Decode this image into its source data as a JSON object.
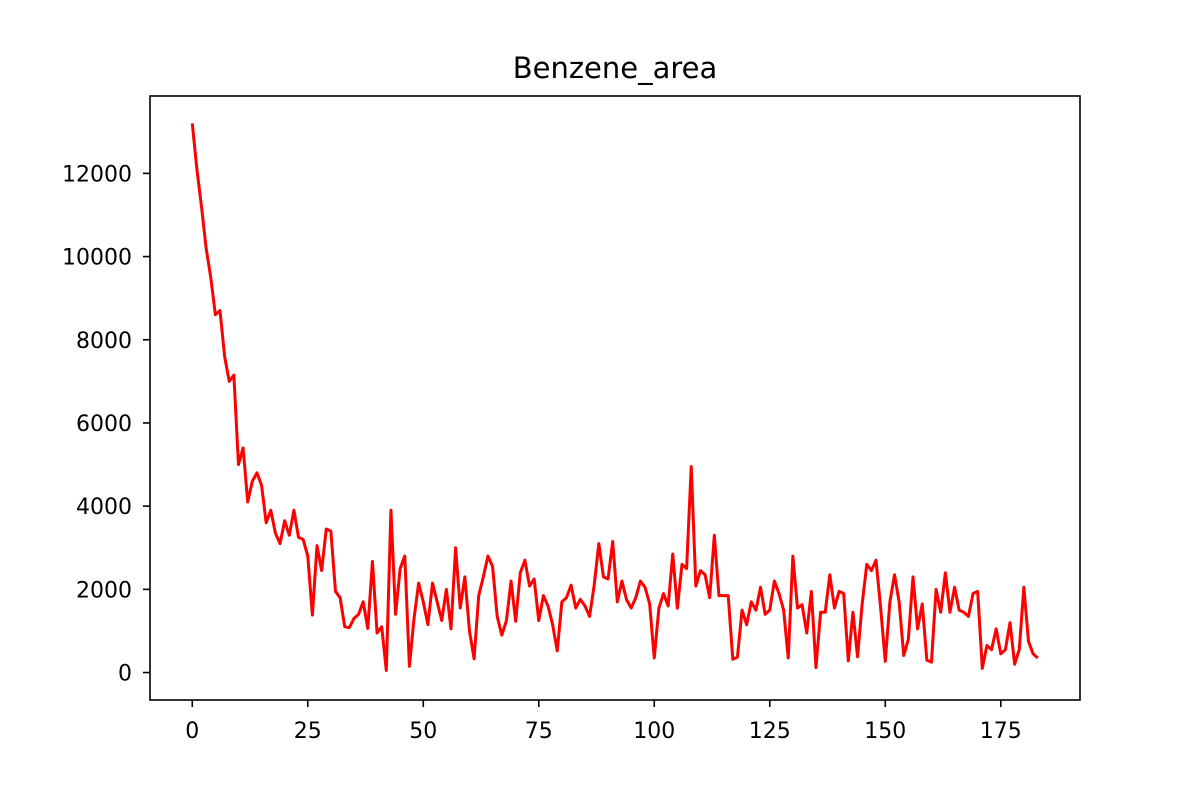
{
  "chart_data": {
    "type": "line",
    "title": "Benzene_area",
    "xlabel": "",
    "ylabel": "",
    "xlim": [
      -9.15,
      192.15
    ],
    "ylim": [
      -660,
      13860
    ],
    "x_ticks": [
      0,
      25,
      50,
      75,
      100,
      125,
      150,
      175
    ],
    "y_ticks": [
      0,
      2000,
      4000,
      6000,
      8000,
      10000,
      12000
    ],
    "grid": false,
    "legend": "none",
    "series": [
      {
        "color": "#ff0000",
        "x_start": 0,
        "x_step": 1,
        "values": [
          13200,
          12100,
          11200,
          10200,
          9500,
          8600,
          8700,
          7600,
          7000,
          7150,
          5000,
          5400,
          4100,
          4600,
          4800,
          4500,
          3600,
          3900,
          3350,
          3100,
          3650,
          3300,
          3900,
          3250,
          3200,
          2800,
          1380,
          3050,
          2450,
          3450,
          3400,
          1950,
          1800,
          1100,
          1080,
          1300,
          1400,
          1700,
          1060,
          2670,
          950,
          1100,
          50,
          3900,
          1400,
          2500,
          2800,
          150,
          1300,
          2150,
          1700,
          1150,
          2150,
          1700,
          1250,
          2000,
          1050,
          3000,
          1550,
          2300,
          1000,
          330,
          1850,
          2300,
          2800,
          2550,
          1350,
          900,
          1250,
          2200,
          1230,
          2400,
          2700,
          2080,
          2250,
          1250,
          1850,
          1600,
          1150,
          520,
          1700,
          1800,
          2100,
          1550,
          1760,
          1600,
          1350,
          2100,
          3100,
          2300,
          2250,
          3150,
          1700,
          2200,
          1750,
          1550,
          1800,
          2200,
          2050,
          1650,
          350,
          1550,
          1900,
          1600,
          2850,
          1550,
          2600,
          2500,
          4950,
          2080,
          2450,
          2350,
          1800,
          3300,
          1850,
          1850,
          1850,
          320,
          370,
          1500,
          1150,
          1700,
          1500,
          2050,
          1400,
          1500,
          2200,
          1900,
          1500,
          350,
          2800,
          1550,
          1630,
          950,
          1950,
          120,
          1450,
          1450,
          2350,
          1550,
          1950,
          1900,
          280,
          1450,
          380,
          1650,
          2600,
          2450,
          2700,
          1550,
          270,
          1700,
          2350,
          1700,
          410,
          800,
          2300,
          1050,
          1650,
          300,
          250,
          2000,
          1450,
          2400,
          1450,
          2050,
          1500,
          1450,
          1350,
          1900,
          1950,
          100,
          650,
          550,
          1050,
          450,
          550,
          1200,
          200,
          550,
          2050,
          750,
          450,
          350
        ]
      }
    ]
  }
}
